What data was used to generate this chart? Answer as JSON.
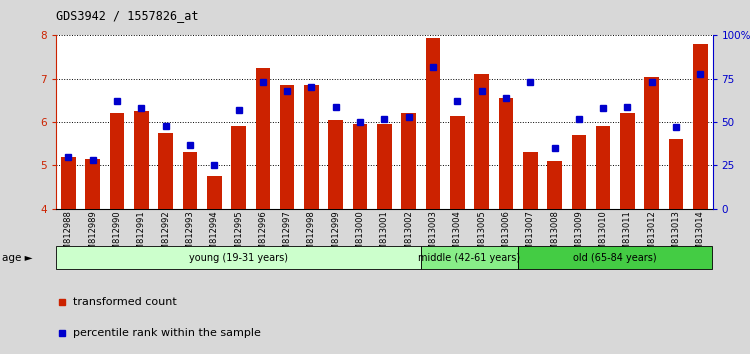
{
  "title": "GDS3942 / 1557826_at",
  "samples": [
    "GSM812988",
    "GSM812989",
    "GSM812990",
    "GSM812991",
    "GSM812992",
    "GSM812993",
    "GSM812994",
    "GSM812995",
    "GSM812996",
    "GSM812997",
    "GSM812998",
    "GSM812999",
    "GSM813000",
    "GSM813001",
    "GSM813002",
    "GSM813003",
    "GSM813004",
    "GSM813005",
    "GSM813006",
    "GSM813007",
    "GSM813008",
    "GSM813009",
    "GSM813010",
    "GSM813011",
    "GSM813012",
    "GSM813013",
    "GSM813014"
  ],
  "bar_values": [
    5.2,
    5.15,
    6.2,
    6.25,
    5.75,
    5.3,
    4.75,
    5.9,
    7.25,
    6.85,
    6.85,
    6.05,
    5.95,
    5.95,
    6.2,
    7.95,
    6.15,
    7.1,
    6.55,
    5.3,
    5.1,
    5.7,
    5.9,
    6.2,
    7.05,
    5.6,
    7.8
  ],
  "percentile_values": [
    30,
    28,
    62,
    58,
    48,
    37,
    25,
    57,
    73,
    68,
    70,
    59,
    50,
    52,
    53,
    82,
    62,
    68,
    64,
    73,
    35,
    52,
    58,
    59,
    73,
    47,
    78
  ],
  "bar_color": "#CC2200",
  "percentile_color": "#0000CC",
  "ylim_left": [
    4,
    8
  ],
  "ylim_right": [
    0,
    100
  ],
  "yticks_left": [
    4,
    5,
    6,
    7,
    8
  ],
  "yticks_right": [
    0,
    25,
    50,
    75,
    100
  ],
  "groups": [
    {
      "label": "young (19-31 years)",
      "start": 0,
      "end": 15,
      "color": "#CCFFCC"
    },
    {
      "label": "middle (42-61 years)",
      "start": 15,
      "end": 19,
      "color": "#88EE88"
    },
    {
      "label": "old (65-84 years)",
      "start": 19,
      "end": 27,
      "color": "#44CC44"
    }
  ],
  "age_label": "age",
  "legend1": "transformed count",
  "legend2": "percentile rank within the sample",
  "bg_color": "#D8D8D8",
  "plot_bg_color": "#FFFFFF",
  "right_axis_color": "#0000CC",
  "left_axis_color": "#CC2200",
  "tick_area_color": "#C8C8C8"
}
